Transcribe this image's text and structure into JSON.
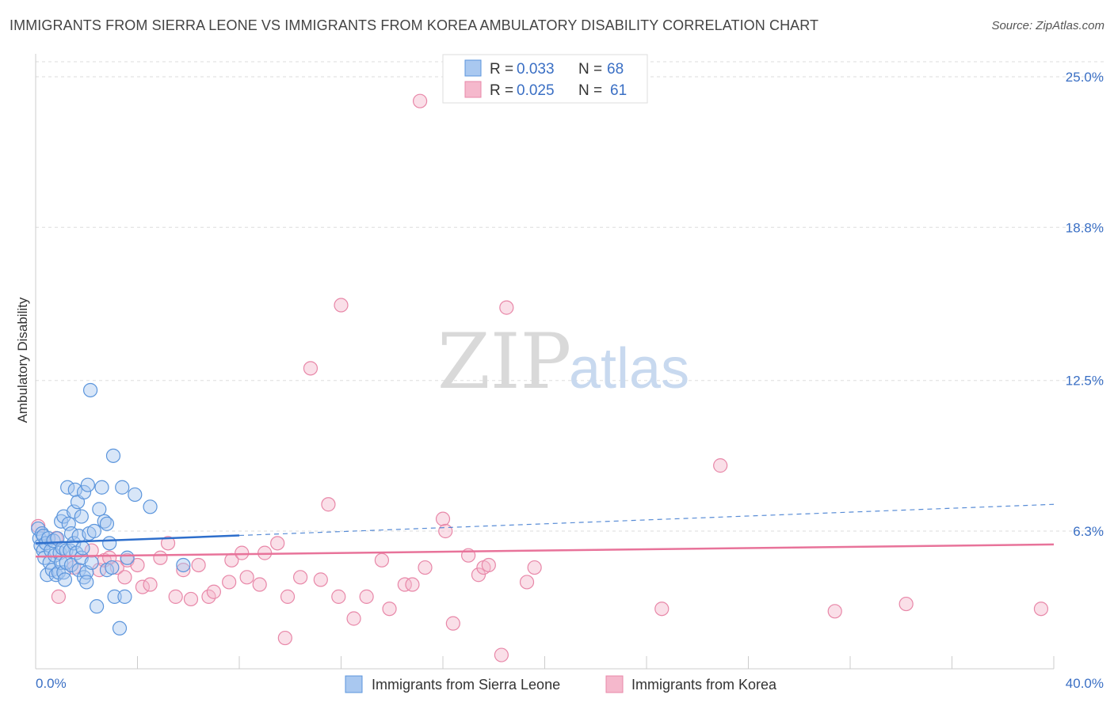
{
  "title": "IMMIGRANTS FROM SIERRA LEONE VS IMMIGRANTS FROM KOREA AMBULATORY DISABILITY CORRELATION CHART",
  "source": "Source: ZipAtlas.com",
  "watermark": {
    "zip": "ZIP",
    "atlas": "atlas"
  },
  "legend": {
    "series1": {
      "r_label": "R = ",
      "r_value": "0.033",
      "n_label": "N = ",
      "n_value": "68"
    },
    "series2": {
      "r_label": "R = ",
      "r_value": "0.025",
      "n_label": "N = ",
      "n_value": "61"
    }
  },
  "colors": {
    "series1_fill": "#a9c8f0",
    "series1_stroke": "#5b95dc",
    "series1_line": "#2e6fcc",
    "series2_fill": "#f5b8cc",
    "series2_stroke": "#e887a8",
    "series2_line": "#e8739a",
    "grid": "#dddddd",
    "axis_text": "#3a6fc4"
  },
  "chart_data": {
    "type": "scatter",
    "title": "IMMIGRANTS FROM SIERRA LEONE VS IMMIGRANTS FROM KOREA AMBULATORY DISABILITY CORRELATION CHART",
    "xlabel": "",
    "ylabel": "Ambulatory Disability",
    "xlim": [
      0,
      40
    ],
    "ylim": [
      0,
      26
    ],
    "x_tick_labels": [
      "0.0%",
      "40.0%"
    ],
    "y_ticks": [
      6.3,
      12.5,
      18.8,
      25.0
    ],
    "y_tick_labels": [
      "6.3%",
      "12.5%",
      "18.8%",
      "25.0%"
    ],
    "grid": true,
    "legend_position": "top-center",
    "series": [
      {
        "name": "Immigrants from Sierra Leone",
        "R": 0.033,
        "N": 68,
        "trend": {
          "x0": 0.0,
          "y0": 5.8,
          "x1": 40.0,
          "y1": 7.4,
          "solid_until_x": 8.0
        },
        "points": [
          [
            0.1,
            6.4
          ],
          [
            0.15,
            6.0
          ],
          [
            0.2,
            5.7
          ],
          [
            0.25,
            6.2
          ],
          [
            0.3,
            5.5
          ],
          [
            0.3,
            6.1
          ],
          [
            0.35,
            5.2
          ],
          [
            0.4,
            5.8
          ],
          [
            0.45,
            4.5
          ],
          [
            0.5,
            6.0
          ],
          [
            0.55,
            5.0
          ],
          [
            0.6,
            5.5
          ],
          [
            0.65,
            4.7
          ],
          [
            0.7,
            5.9
          ],
          [
            0.75,
            5.3
          ],
          [
            0.8,
            4.5
          ],
          [
            0.85,
            6.0
          ],
          [
            0.9,
            4.6
          ],
          [
            0.95,
            5.4
          ],
          [
            1.0,
            6.7
          ],
          [
            1.0,
            5.0
          ],
          [
            1.05,
            5.6
          ],
          [
            1.1,
            4.6
          ],
          [
            1.1,
            6.9
          ],
          [
            1.15,
            4.3
          ],
          [
            1.2,
            5.5
          ],
          [
            1.2,
            5.0
          ],
          [
            1.25,
            8.1
          ],
          [
            1.3,
            6.6
          ],
          [
            1.35,
            5.5
          ],
          [
            1.4,
            6.2
          ],
          [
            1.4,
            4.9
          ],
          [
            1.5,
            5.8
          ],
          [
            1.5,
            7.1
          ],
          [
            1.55,
            8.0
          ],
          [
            1.6,
            5.4
          ],
          [
            1.65,
            7.5
          ],
          [
            1.7,
            6.1
          ],
          [
            1.7,
            4.7
          ],
          [
            1.8,
            6.9
          ],
          [
            1.8,
            5.2
          ],
          [
            1.85,
            5.6
          ],
          [
            1.9,
            4.4
          ],
          [
            1.9,
            7.9
          ],
          [
            2.0,
            4.6
          ],
          [
            2.0,
            4.2
          ],
          [
            2.05,
            8.2
          ],
          [
            2.1,
            6.2
          ],
          [
            2.15,
            12.1
          ],
          [
            2.2,
            5.0
          ],
          [
            2.3,
            6.3
          ],
          [
            2.4,
            3.2
          ],
          [
            2.5,
            7.2
          ],
          [
            2.6,
            8.1
          ],
          [
            2.7,
            6.7
          ],
          [
            2.8,
            6.6
          ],
          [
            2.8,
            4.7
          ],
          [
            2.9,
            5.8
          ],
          [
            3.0,
            4.8
          ],
          [
            3.05,
            9.4
          ],
          [
            3.1,
            3.6
          ],
          [
            3.5,
            3.6
          ],
          [
            3.3,
            2.3
          ],
          [
            3.4,
            8.1
          ],
          [
            3.6,
            5.2
          ],
          [
            3.9,
            7.8
          ],
          [
            4.5,
            7.3
          ],
          [
            5.8,
            4.9
          ]
        ]
      },
      {
        "name": "Immigrants from Korea",
        "R": 0.025,
        "N": 61,
        "trend": {
          "x0": 0.0,
          "y0": 5.25,
          "x1": 40.0,
          "y1": 5.75
        },
        "points": [
          [
            0.1,
            6.5
          ],
          [
            0.8,
            6.0
          ],
          [
            1.5,
            4.8
          ],
          [
            2.2,
            5.5
          ],
          [
            2.5,
            4.7
          ],
          [
            2.7,
            5.1
          ],
          [
            2.9,
            5.2
          ],
          [
            3.2,
            4.8
          ],
          [
            3.5,
            4.4
          ],
          [
            3.6,
            5.1
          ],
          [
            4.0,
            4.9
          ],
          [
            4.2,
            4.0
          ],
          [
            4.5,
            4.1
          ],
          [
            4.9,
            5.2
          ],
          [
            5.2,
            5.8
          ],
          [
            5.5,
            3.6
          ],
          [
            5.8,
            4.7
          ],
          [
            6.1,
            3.5
          ],
          [
            6.4,
            4.9
          ],
          [
            6.8,
            3.6
          ],
          [
            7.0,
            3.8
          ],
          [
            7.6,
            4.2
          ],
          [
            7.7,
            5.1
          ],
          [
            8.1,
            5.4
          ],
          [
            8.3,
            4.4
          ],
          [
            8.8,
            4.1
          ],
          [
            9.0,
            5.4
          ],
          [
            9.5,
            5.8
          ],
          [
            9.8,
            1.9
          ],
          [
            9.9,
            3.6
          ],
          [
            10.4,
            4.4
          ],
          [
            10.8,
            13.0
          ],
          [
            11.2,
            4.3
          ],
          [
            11.5,
            7.4
          ],
          [
            11.9,
            3.6
          ],
          [
            12.5,
            2.7
          ],
          [
            13.0,
            3.6
          ],
          [
            13.6,
            5.1
          ],
          [
            13.9,
            3.1
          ],
          [
            14.5,
            4.1
          ],
          [
            14.8,
            4.1
          ],
          [
            15.1,
            24.0
          ],
          [
            15.3,
            4.8
          ],
          [
            16.0,
            6.8
          ],
          [
            16.1,
            6.3
          ],
          [
            16.4,
            2.5
          ],
          [
            17.0,
            5.3
          ],
          [
            17.4,
            4.5
          ],
          [
            17.6,
            4.8
          ],
          [
            17.8,
            4.9
          ],
          [
            18.3,
            1.2
          ],
          [
            18.5,
            15.5
          ],
          [
            19.3,
            4.2
          ],
          [
            19.6,
            4.8
          ],
          [
            12.0,
            15.6
          ],
          [
            24.6,
            3.1
          ],
          [
            26.9,
            9.0
          ],
          [
            31.4,
            3.0
          ],
          [
            34.2,
            3.3
          ],
          [
            39.5,
            3.1
          ],
          [
            0.9,
            3.6
          ]
        ]
      }
    ]
  }
}
